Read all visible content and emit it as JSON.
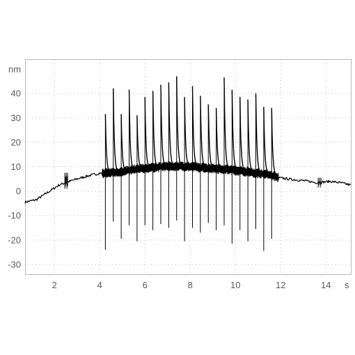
{
  "chart_data": {
    "type": "line",
    "xlabel": "s",
    "ylabel": "nm",
    "xlim": [
      0.7,
      15.1
    ],
    "ylim": [
      -34,
      54
    ],
    "x_ticks": [
      2,
      4,
      6,
      8,
      10,
      12,
      14
    ],
    "y_ticks": [
      -30,
      -20,
      -10,
      0,
      10,
      20,
      30,
      40
    ],
    "grid": true,
    "colors": {
      "trace": "#000000",
      "grid": "#d9d9d9",
      "frame": "#b8b8b8",
      "text": "#5a5a5a"
    },
    "baseline": {
      "x": [
        0.7,
        1.2,
        1.7,
        2.2,
        2.5,
        3.0,
        3.5,
        4.0,
        4.4,
        5.0,
        5.5,
        6.0,
        6.5,
        7.0,
        7.5,
        8.0,
        8.5,
        9.0,
        9.5,
        10.0,
        10.5,
        11.0,
        11.5,
        11.9,
        12.5,
        13.0,
        13.6,
        14.2,
        14.6,
        15.1
      ],
      "y": [
        -4.5,
        -3.5,
        -0.5,
        2.5,
        3.5,
        5.0,
        6.3,
        7.3,
        7.5,
        8.0,
        8.8,
        9.3,
        9.8,
        10.2,
        10.2,
        10.0,
        9.7,
        9.3,
        9.0,
        8.5,
        8.0,
        7.3,
        6.8,
        5.5,
        4.8,
        4.3,
        3.5,
        4.0,
        3.5,
        2.5
      ]
    },
    "bursts": [
      {
        "x": 2.52,
        "max": 7.5,
        "min": 1.0
      },
      {
        "x": 13.72,
        "max": 5.5,
        "min": 1.5
      }
    ],
    "spikes": {
      "x": [
        4.25,
        4.6,
        4.95,
        5.3,
        5.65,
        6.0,
        6.35,
        6.7,
        7.05,
        7.4,
        7.75,
        8.1,
        8.45,
        8.8,
        9.15,
        9.5,
        9.85,
        10.2,
        10.55,
        10.9,
        11.25,
        11.6
      ],
      "max": [
        31.5,
        42.0,
        31.5,
        41.5,
        31.0,
        38.5,
        41.0,
        43.5,
        44.5,
        47.0,
        38.5,
        43.0,
        39.0,
        35.5,
        34.0,
        46.5,
        41.5,
        38.5,
        37.5,
        40.0,
        34.5,
        34.0
      ],
      "min": [
        -24.0,
        -12.5,
        -19.5,
        -14.0,
        -20.5,
        -14.0,
        -16.0,
        -13.5,
        -15.0,
        -12.0,
        -20.5,
        -15.0,
        -17.0,
        -13.0,
        -16.0,
        -14.0,
        -21.5,
        -16.0,
        -20.5,
        -15.5,
        -24.5,
        -19.5
      ]
    }
  }
}
